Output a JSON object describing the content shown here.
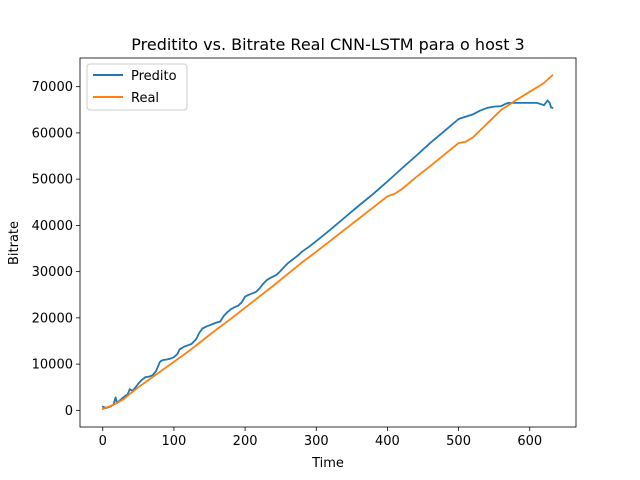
{
  "chart_data": {
    "type": "line",
    "title": "Preditito vs. Bitrate Real CNN-LSTM para o host 3",
    "xlabel": "Time",
    "ylabel": "Bitrate",
    "xlim": [
      -32,
      665
    ],
    "ylim": [
      -3600,
      76200
    ],
    "xticks": [
      0,
      100,
      200,
      300,
      400,
      500,
      600
    ],
    "yticks": [
      0,
      10000,
      20000,
      30000,
      40000,
      50000,
      60000,
      70000
    ],
    "grid": false,
    "legend": "top-left",
    "series": [
      {
        "name": "Predito",
        "color": "#1f77b4",
        "x": [
          0,
          5,
          10,
          15,
          18,
          20,
          23,
          28,
          35,
          38,
          42,
          50,
          55,
          60,
          65,
          70,
          75,
          80,
          82,
          85,
          90,
          95,
          100,
          105,
          108,
          110,
          115,
          120,
          125,
          130,
          132,
          135,
          140,
          143,
          145,
          150,
          155,
          160,
          165,
          170,
          175,
          180,
          183,
          185,
          190,
          195,
          200,
          205,
          210,
          215,
          220,
          225,
          230,
          235,
          240,
          243,
          245,
          250,
          255,
          260,
          265,
          270,
          275,
          280,
          290,
          300,
          320,
          340,
          360,
          380,
          400,
          420,
          440,
          460,
          480,
          500,
          520,
          530,
          540,
          550,
          560,
          565,
          570,
          580,
          590,
          600,
          610,
          620,
          625,
          628,
          630,
          632
        ],
        "y": [
          800,
          500,
          800,
          1200,
          2800,
          1600,
          2000,
          2700,
          3500,
          4600,
          4200,
          5800,
          6600,
          7200,
          7300,
          7600,
          8500,
          10400,
          10700,
          10900,
          11000,
          11200,
          11500,
          12200,
          13200,
          13400,
          13800,
          14100,
          14400,
          15200,
          15600,
          16600,
          17700,
          17900,
          18100,
          18400,
          18700,
          19000,
          19200,
          20400,
          21200,
          21900,
          22100,
          22300,
          22600,
          23300,
          24600,
          25000,
          25300,
          25600,
          26300,
          27300,
          28100,
          28600,
          29000,
          29200,
          29400,
          30200,
          31000,
          31800,
          32400,
          33000,
          33600,
          34300,
          35400,
          36600,
          39100,
          41700,
          44300,
          46800,
          49500,
          52300,
          55000,
          57800,
          60400,
          63000,
          64000,
          64800,
          65400,
          65700,
          65800,
          66200,
          66500,
          66500,
          66500,
          66500,
          66500,
          66000,
          67000,
          66500,
          65500,
          65400
        ]
      },
      {
        "name": "Real",
        "color": "#ff7f0e",
        "x": [
          0,
          10,
          20,
          30,
          40,
          50,
          60,
          80,
          100,
          120,
          140,
          160,
          180,
          200,
          220,
          240,
          260,
          280,
          300,
          320,
          340,
          360,
          380,
          400,
          410,
          420,
          440,
          460,
          480,
          500,
          510,
          520,
          540,
          560,
          570,
          580,
          600,
          620,
          632
        ],
        "y": [
          300,
          900,
          1600,
          2500,
          3800,
          5000,
          6100,
          8300,
          10500,
          12700,
          15100,
          17500,
          19800,
          22200,
          24600,
          27000,
          29500,
          32000,
          34300,
          36700,
          39100,
          41500,
          43900,
          46300,
          46800,
          47800,
          50400,
          52800,
          55300,
          57800,
          58100,
          59000,
          62000,
          65000,
          66000,
          67000,
          68900,
          70800,
          72500
        ]
      }
    ]
  }
}
